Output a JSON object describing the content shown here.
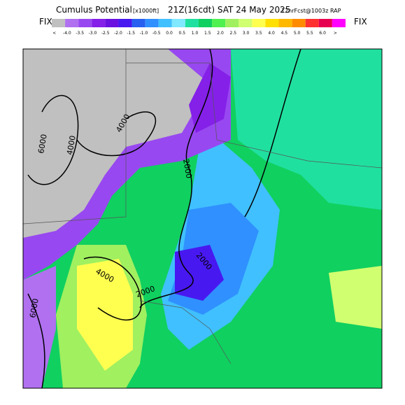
{
  "header": {
    "title": "Cumulus Potential",
    "units": "[x1000ft]",
    "time": "21Z(16cdt) SAT 24 May 2025",
    "forecast": "12hrFcst@1003z RAP"
  },
  "colorbar": {
    "left_label": "FIX",
    "right_label": "FIX",
    "labels": [
      "<",
      "-4.0",
      "-3.5",
      "-3.0",
      "-2.5",
      "-2.0",
      "-1.5",
      "-1.0",
      "-0.5",
      "0.0",
      "0.5",
      "1.0",
      "1.5",
      "2.0",
      "2.5",
      "3.0",
      "3.5",
      "4.0",
      "4.5",
      "5.0",
      "5.5",
      "6.0",
      ">"
    ],
    "colors": [
      "#c0c0c0",
      "#b070f0",
      "#9848f0",
      "#8420e8",
      "#6a10e0",
      "#4818f0",
      "#2860f0",
      "#3090ff",
      "#40c0ff",
      "#80e8ff",
      "#20e0a0",
      "#10d060",
      "#50f050",
      "#a0f060",
      "#d0ff70",
      "#ffff50",
      "#ffe000",
      "#ffb800",
      "#ff8c00",
      "#ff3030",
      "#e80050",
      "#ff00ff"
    ]
  },
  "contour_labels": [
    "4000",
    "6000",
    "4000",
    "2000",
    "2000",
    "4000",
    "2000",
    "6000"
  ]
}
